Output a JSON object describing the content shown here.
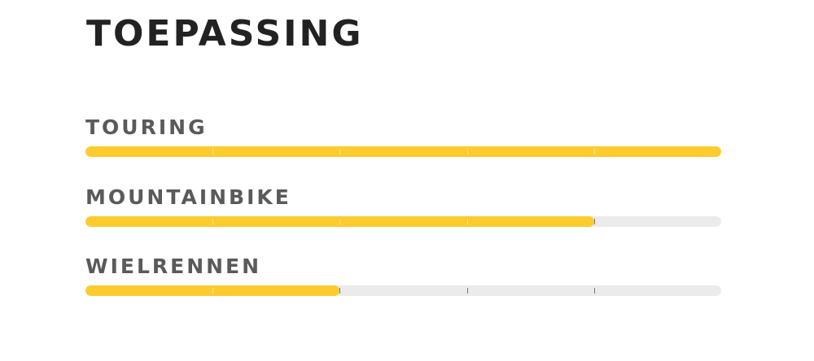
{
  "title": "TOEPASSING",
  "colors": {
    "fill": "#fccb2e",
    "track": "#ebebeb"
  },
  "scale_max": 5,
  "ratings": [
    {
      "label": "TOURING",
      "value": 5
    },
    {
      "label": "MOUNTAINBIKE",
      "value": 4
    },
    {
      "label": "WIELRENNEN",
      "value": 2
    }
  ]
}
